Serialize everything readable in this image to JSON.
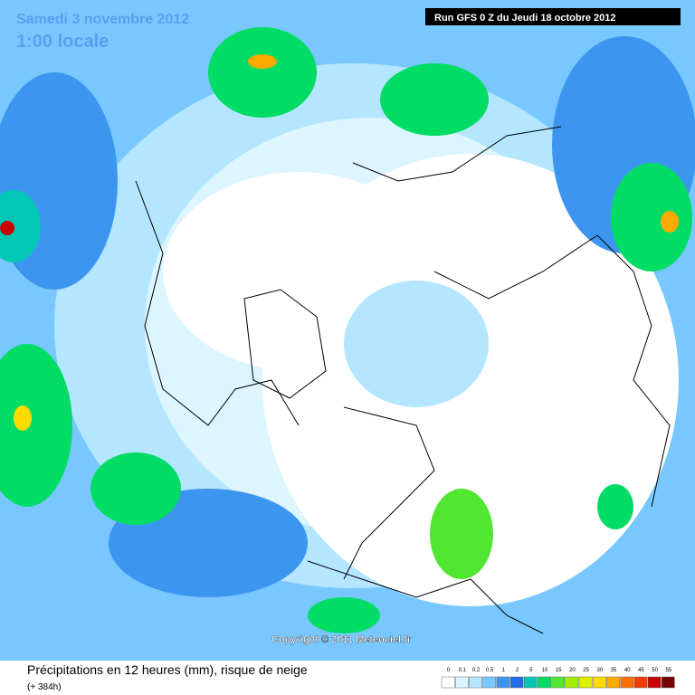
{
  "header": {
    "date": "Samedi 3 novembre 2012",
    "time": "1:00 locale",
    "run": "Run GFS 0 Z du Jeudi 18 octobre 2012"
  },
  "copyright": "Copyright © 2011 Meteociel.fr",
  "footer": {
    "title": "Précipitations en 12 heures (mm), risque de neige",
    "subtitle": "(+ 384h)"
  },
  "legend": {
    "labels": [
      0,
      0.1,
      0.2,
      0.5,
      1,
      2,
      5,
      10,
      15,
      20,
      25,
      30,
      35,
      40,
      45,
      50,
      55
    ],
    "colors": [
      "#ffffff",
      "#dcf5ff",
      "#b4e6ff",
      "#78c8ff",
      "#3c96f0",
      "#1e6ee6",
      "#00c8b4",
      "#00dc64",
      "#50e632",
      "#a0f000",
      "#dcf000",
      "#ffdc00",
      "#ffaa00",
      "#ff6e00",
      "#f03c00",
      "#c80000",
      "#780000"
    ]
  }
}
